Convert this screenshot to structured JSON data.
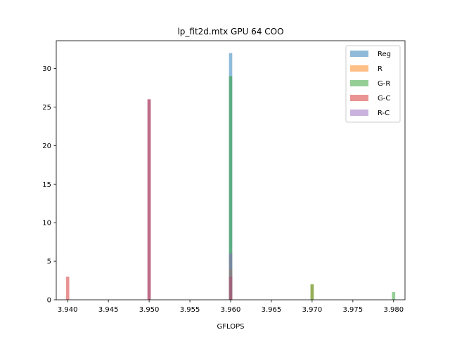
{
  "chart_data": {
    "type": "bar",
    "subtype": "histogram",
    "title": "lp_fit2d.mtx GPU 64 COO",
    "xlabel": "GFLOPS",
    "ylabel": "",
    "xlim": [
      3.9386,
      3.9814
    ],
    "ylim": [
      0,
      33.6
    ],
    "x_ticks": [
      3.94,
      3.945,
      3.95,
      3.955,
      3.96,
      3.965,
      3.97,
      3.975,
      3.98
    ],
    "x_tick_labels": [
      "3.940",
      "3.945",
      "3.950",
      "3.955",
      "3.960",
      "3.965",
      "3.970",
      "3.975",
      "3.980"
    ],
    "y_ticks": [
      0,
      5,
      10,
      15,
      20,
      25,
      30
    ],
    "y_tick_labels": [
      "0",
      "5",
      "10",
      "15",
      "20",
      "25",
      "30"
    ],
    "bar_width": 0.0004,
    "opacity": 0.5,
    "grid": false,
    "legend_position": "top-right",
    "series": [
      {
        "name": "Reg",
        "color": "#1f77b4",
        "bars": [
          {
            "x": 3.96,
            "count": 32
          }
        ]
      },
      {
        "name": "R",
        "color": "#ff7f0e",
        "bars": [
          {
            "x": 3.95,
            "count": 26
          },
          {
            "x": 3.96,
            "count": 4
          },
          {
            "x": 3.97,
            "count": 2
          }
        ]
      },
      {
        "name": "G-R",
        "color": "#2ca02c",
        "bars": [
          {
            "x": 3.96,
            "count": 29
          },
          {
            "x": 3.97,
            "count": 2
          },
          {
            "x": 3.98,
            "count": 1
          }
        ]
      },
      {
        "name": "G-C",
        "color": "#d62728",
        "bars": [
          {
            "x": 3.94,
            "count": 3
          },
          {
            "x": 3.95,
            "count": 26
          },
          {
            "x": 3.96,
            "count": 3
          }
        ]
      },
      {
        "name": "R-C",
        "color": "#9467bd",
        "bars": [
          {
            "x": 3.95,
            "count": 26
          },
          {
            "x": 3.96,
            "count": 6
          }
        ]
      }
    ]
  }
}
